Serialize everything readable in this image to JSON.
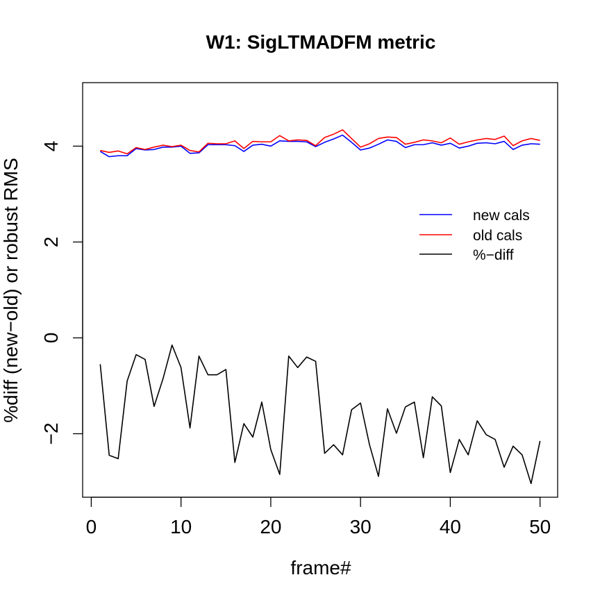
{
  "chart_data": {
    "type": "line",
    "title": "W1: SigLTMADFM metric",
    "xlabel": "frame#",
    "ylabel": "%diff (new−old) or robust RMS",
    "xlim": [
      -0.96,
      51.96
    ],
    "ylim": [
      -3.325,
      5.325
    ],
    "xticks": [
      0,
      10,
      20,
      30,
      40,
      50
    ],
    "yticks": [
      -2,
      0,
      2,
      4
    ],
    "xtick_labels": [
      "0",
      "10",
      "20",
      "30",
      "40",
      "50"
    ],
    "ytick_labels": [
      "−2",
      "0",
      "2",
      "4"
    ],
    "legend_position": "right",
    "x": [
      1,
      2,
      3,
      4,
      5,
      6,
      7,
      8,
      9,
      10,
      11,
      12,
      13,
      14,
      15,
      16,
      17,
      18,
      19,
      20,
      21,
      22,
      23,
      24,
      25,
      26,
      27,
      28,
      29,
      30,
      31,
      32,
      33,
      34,
      35,
      36,
      37,
      38,
      39,
      40,
      41,
      42,
      43,
      44,
      45,
      46,
      47,
      48,
      49,
      50
    ],
    "series": [
      {
        "name": "new cals",
        "color": "#0000ff",
        "values": [
          3.89,
          3.78,
          3.8,
          3.8,
          3.95,
          3.92,
          3.93,
          3.98,
          3.98,
          4.0,
          3.85,
          3.86,
          4.03,
          4.03,
          4.03,
          4.01,
          3.89,
          4.02,
          4.04,
          4.0,
          4.11,
          4.1,
          4.1,
          4.09,
          3.99,
          4.08,
          4.15,
          4.23,
          4.08,
          3.92,
          3.96,
          4.04,
          4.13,
          4.1,
          3.97,
          4.03,
          4.03,
          4.07,
          4.02,
          4.06,
          3.96,
          4.0,
          4.06,
          4.07,
          4.05,
          4.1,
          3.93,
          4.02,
          4.05,
          4.04
        ]
      },
      {
        "name": "old cals",
        "color": "#ff0000",
        "values": [
          3.91,
          3.87,
          3.9,
          3.84,
          3.97,
          3.93,
          3.98,
          4.02,
          3.99,
          4.02,
          3.91,
          3.88,
          4.06,
          4.05,
          4.05,
          4.11,
          3.95,
          4.1,
          4.09,
          4.09,
          4.22,
          4.11,
          4.13,
          4.12,
          4.01,
          4.18,
          4.25,
          4.34,
          4.16,
          3.98,
          4.05,
          4.16,
          4.19,
          4.18,
          4.04,
          4.08,
          4.13,
          4.11,
          4.07,
          4.17,
          4.04,
          4.09,
          4.13,
          4.16,
          4.14,
          4.21,
          4.01,
          4.11,
          4.16,
          4.12
        ]
      },
      {
        "name": "%−diff",
        "color": "#000000",
        "values": [
          -0.55,
          -2.45,
          -2.52,
          -0.9,
          -0.35,
          -0.45,
          -1.43,
          -0.85,
          -0.15,
          -0.62,
          -1.88,
          -0.38,
          -0.77,
          -0.77,
          -0.66,
          -2.6,
          -1.79,
          -2.07,
          -1.34,
          -2.33,
          -2.85,
          -0.38,
          -0.62,
          -0.4,
          -0.49,
          -2.41,
          -2.23,
          -2.44,
          -1.5,
          -1.36,
          -2.23,
          -2.89,
          -1.48,
          -1.99,
          -1.44,
          -1.34,
          -2.5,
          -1.23,
          -1.42,
          -2.81,
          -2.12,
          -2.44,
          -1.73,
          -2.02,
          -2.12,
          -2.7,
          -2.26,
          -2.44,
          -3.04,
          -2.15
        ]
      }
    ]
  }
}
